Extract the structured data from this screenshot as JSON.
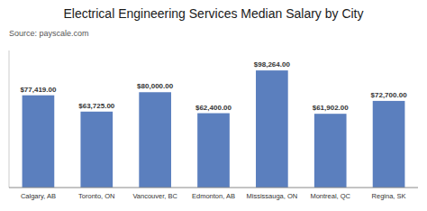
{
  "chart_data": {
    "type": "bar",
    "title": "Electrical Engineering Services Median Salary by City",
    "subtitle": "Source: payscale.com",
    "categories": [
      "Calgary, AB",
      "Toronto, ON",
      "Vancouver, BC",
      "Edmonton, AB",
      "Mississauga, ON",
      "Montreal, QC",
      "Regina, SK"
    ],
    "values": [
      77419,
      63725,
      80000,
      62400,
      98264,
      61902,
      72700
    ],
    "value_labels": [
      "$77,419.00",
      "$63,725.00",
      "$80,000.00",
      "$62,400.00",
      "$98,264.00",
      "$61,902.00",
      "$72,700.00"
    ],
    "data_labels": true,
    "color": "#5b7fbe",
    "ylim": [
      0,
      115000
    ],
    "tick_labels": "x",
    "grid": false
  }
}
